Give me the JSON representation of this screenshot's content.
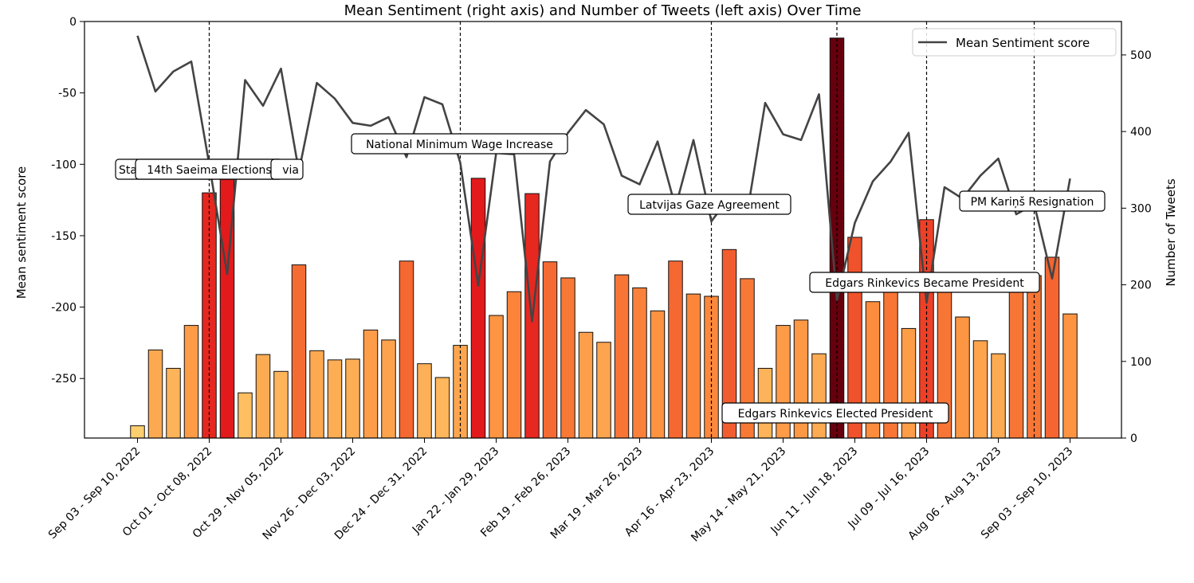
{
  "chart_data": {
    "type": "bar",
    "title": "Mean Sentiment (right axis) and Number of Tweets (left axis) Over Time",
    "ylabel_left": "Mean sentiment score",
    "ylabel_right": "Number of Tweets",
    "left_axis": {
      "range": [
        -291.7,
        0
      ],
      "ticks": [
        0,
        -50,
        -100,
        -150,
        -200,
        -250
      ]
    },
    "right_axis": {
      "range": [
        0,
        543.6
      ],
      "ticks": [
        0,
        100,
        200,
        300,
        400,
        500
      ]
    },
    "x_tick_labels": [
      "Sep 03 - Sep 10, 2022",
      "Oct 01 - Oct 08, 2022",
      "Oct 29 - Nov 05, 2022",
      "Nov 26 - Dec 03, 2022",
      "Dec 24 - Dec 31, 2022",
      "Jan 22 - Jan 29, 2023",
      "Feb 19 - Feb 26, 2023",
      "Mar 19 - Mar 26, 2023",
      "Apr 16 - Apr 23, 2023",
      "May 14 - May 21, 2023",
      "Jun 11 - Jun 18, 2023",
      "Jul 09 - Jul 16, 2023",
      "Aug 06 - Aug 13, 2023",
      "Sep 03 - Sep 10, 2023"
    ],
    "tweet_counts": [
      16,
      115,
      91,
      147,
      320,
      340,
      59,
      109,
      87,
      226,
      114,
      102,
      103,
      141,
      128,
      231,
      97,
      79,
      121,
      339,
      160,
      191,
      319,
      230,
      209,
      138,
      125,
      213,
      196,
      166,
      231,
      188,
      185,
      246,
      208,
      91,
      147,
      154,
      110,
      522,
      262,
      178,
      212,
      143,
      285,
      212,
      158,
      127,
      110,
      212,
      212,
      236,
      162
    ],
    "sentiment": [
      -10,
      -49,
      -35,
      -28,
      -100,
      -177,
      -41,
      -59,
      -33,
      -105,
      -43,
      -54,
      -71,
      -73,
      -67,
      -95,
      -53,
      -58,
      -99,
      -185,
      -92,
      -93,
      -210,
      -98,
      -78,
      -62,
      -72,
      -108,
      -114,
      -84,
      -130,
      -83,
      -140,
      -123,
      -134,
      -57,
      -79,
      -83,
      -51,
      -195,
      -141,
      -112,
      -98,
      -78,
      -197,
      -116,
      -124,
      -108,
      -96,
      -135,
      -128,
      -180,
      -110
    ],
    "highlight_color": "#67000d",
    "line_color": "#444444",
    "legend": {
      "position": "top-right",
      "entries": [
        "Mean Sentiment score"
      ]
    },
    "events": [
      {
        "label": "State Visit of President of Latvia",
        "label_visible": "Sta",
        "label_tail": "via"
      },
      {
        "label": "14th Saeima Elections"
      },
      {
        "label": "National Minimum Wage Increase"
      },
      {
        "label": "Latvijas Gaze Agreement"
      },
      {
        "label": "Edgars Rinkevics Elected President"
      },
      {
        "label": "Edgars Rinkevics Became President"
      },
      {
        "label": "PM Kariņš Resignation"
      }
    ]
  }
}
